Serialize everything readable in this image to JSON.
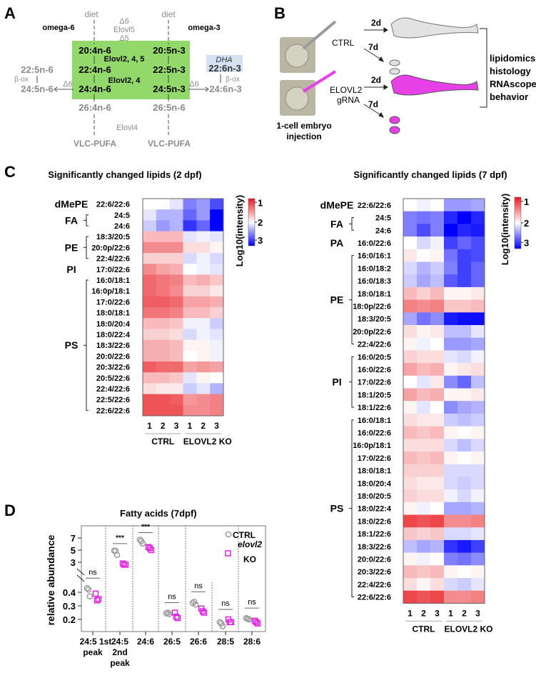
{
  "panels": {
    "a": "A",
    "b": "B",
    "c": "C",
    "d": "D"
  },
  "panel_a": {
    "diet": "diet",
    "omega6": "omega-6",
    "omega3": "omega-3",
    "enz_top": [
      "Δ6",
      "Elovl5",
      "Δ5"
    ],
    "n6": [
      "20:4n-6",
      "22:4n-6",
      "24:4n-6",
      "26:4n-6"
    ],
    "n3": [
      "20:5n-3",
      "22:5n-3",
      "24:5n-3",
      "26:5n-6"
    ],
    "elovl245": "Elovl2, 4, 5",
    "elovl24": "Elovl2, 4",
    "elovl4": "Elovl4",
    "vlc": "VLC-PUFA",
    "left_upper": "22:5n-6",
    "left_lower": "24:5n-6",
    "beta_ox": "β-ox",
    "delta6": "Δ6",
    "dha": "DHA",
    "right_upper": "22:6n-3",
    "right_lower": "24:6n-3",
    "colors": {
      "green_box": "#92d86a",
      "dha_box": "#d6e2f3",
      "grey_text": "#8c8c8c"
    }
  },
  "panel_b": {
    "ctrl": "CTRL",
    "elovl2": "ELOVL2",
    "grna": "gRNA",
    "d2": "2d",
    "d7": "7d",
    "injection": [
      "1-cell embryo",
      "injection"
    ],
    "readouts": [
      "lipidomics",
      "histology",
      "RNAscope",
      "behavior"
    ],
    "colors": {
      "ctrl_fish": "#e2e2e2",
      "ko_fish": "#e640e6"
    }
  },
  "chart_data": [
    {
      "type": "heatmap",
      "title": "Significantly changed lipids (2 dpf)",
      "colorbar_label": "Log10(intensity)",
      "colorbar_ticks": [
        "1",
        "2",
        "3"
      ],
      "color_range": [
        1,
        3
      ],
      "colors": {
        "low": "#e8191f",
        "mid": "#ffffff",
        "high": "#0000ff"
      },
      "column_labels": [
        "1",
        "2",
        "3",
        "1",
        "2",
        "3"
      ],
      "groups": [
        "CTRL",
        "ELOVL2 KO"
      ],
      "classes": [
        {
          "name": "dMePE",
          "rows": [
            0,
            0
          ]
        },
        {
          "name": "FA",
          "rows": [
            1,
            2
          ]
        },
        {
          "name": "PE",
          "rows": [
            3,
            5
          ]
        },
        {
          "name": "PI",
          "rows": [
            6,
            6
          ]
        },
        {
          "name": "PS",
          "rows": [
            7,
            19
          ]
        }
      ],
      "rows": [
        "22:6/22:6",
        "24:5",
        "24:6",
        "18:3/20:5",
        "20:0p/22:6",
        "22:4/22:6",
        "17:0/22:6",
        "16:0/18:1",
        "16:0p/18:1",
        "17:0/22:6",
        "18:0/18:1",
        "18:0/20:4",
        "18:0/22:4",
        "18:3/22:6",
        "20:0/22:6",
        "20:3/22:6",
        "20:5/22:6",
        "22:4/22:6",
        "22:5/22:6",
        "22:6/22:6"
      ],
      "values": [
        [
          2.0,
          2.0,
          2.1,
          2.5,
          2.4,
          2.7
        ],
        [
          2.1,
          2.3,
          2.3,
          2.6,
          2.4,
          3.0
        ],
        [
          2.2,
          2.4,
          2.3,
          2.8,
          2.6,
          3.0
        ],
        [
          1.7,
          1.7,
          1.7,
          2.1,
          2.05,
          2.1
        ],
        [
          1.5,
          1.5,
          1.5,
          1.85,
          1.85,
          1.95
        ],
        [
          1.8,
          1.8,
          1.8,
          2.15,
          2.05,
          2.15
        ],
        [
          1.5,
          1.6,
          1.65,
          2.0,
          2.05,
          2.1
        ],
        [
          1.35,
          1.4,
          1.45,
          1.7,
          1.65,
          1.75
        ],
        [
          1.35,
          1.4,
          1.5,
          1.8,
          1.8,
          1.9
        ],
        [
          1.3,
          1.3,
          1.35,
          1.6,
          1.6,
          1.65
        ],
        [
          1.4,
          1.4,
          1.45,
          1.7,
          1.7,
          1.8
        ],
        [
          1.7,
          1.7,
          1.75,
          2.05,
          2.05,
          2.2
        ],
        [
          1.8,
          1.8,
          1.85,
          2.15,
          2.05,
          2.1
        ],
        [
          1.65,
          1.65,
          1.7,
          1.95,
          1.95,
          2.05
        ],
        [
          1.65,
          1.65,
          1.7,
          2.0,
          1.95,
          2.05
        ],
        [
          1.3,
          1.35,
          1.35,
          1.6,
          1.55,
          1.6
        ],
        [
          1.7,
          1.7,
          1.75,
          2.1,
          1.95,
          2.0
        ],
        [
          1.85,
          1.9,
          1.9,
          2.2,
          2.1,
          2.3
        ],
        [
          1.25,
          1.25,
          1.3,
          1.55,
          1.5,
          1.45
        ],
        [
          1.25,
          1.25,
          1.25,
          1.5,
          1.5,
          1.45
        ]
      ]
    },
    {
      "type": "heatmap",
      "title": "Significantly changed lipids (7 dpf)",
      "colorbar_label": "Log10(intensity)",
      "colorbar_ticks": [
        "1",
        "2",
        "3"
      ],
      "color_range": [
        1,
        3
      ],
      "colors": {
        "low": "#e8191f",
        "mid": "#ffffff",
        "high": "#0000ff"
      },
      "column_labels": [
        "1",
        "2",
        "3",
        "1",
        "2",
        "3"
      ],
      "groups": [
        "CTRL",
        "ELOVL2 KO"
      ],
      "classes": [
        {
          "name": "dMePE",
          "rows": [
            0,
            0
          ]
        },
        {
          "name": "FA",
          "rows": [
            1,
            2
          ]
        },
        {
          "name": "PA",
          "rows": [
            3,
            3
          ]
        },
        {
          "name": "PE",
          "rows": [
            4,
            11
          ]
        },
        {
          "name": "PI",
          "rows": [
            12,
            16
          ]
        },
        {
          "name": "PS",
          "rows": [
            17,
            31
          ]
        }
      ],
      "rows": [
        "22:6/22:6",
        "24:5",
        "24:6",
        "16:0/22:6",
        "16:0/16:1",
        "16:0/18:2",
        "16:0/18:3",
        "18:0/18:1",
        "18:0p/22:6",
        "18:3/20:5",
        "20:0p/22:6",
        "22:4/22:6",
        "16:0/20:5",
        "16:0/22:6",
        "17:0/22:6",
        "18:1/20:5",
        "18:1/22:6",
        "16:0/18:1",
        "16:0/22:6",
        "16:0p/18:1",
        "17:0/22:6",
        "18:0/18:1",
        "18:0/20:4",
        "18:0/20:5",
        "18:0/22:4",
        "18:0/22:6",
        "18:1/22:6",
        "18:3/22:6",
        "20:0/22:6",
        "20:3/22:6",
        "22:4/22:6",
        "22:6/22:6"
      ],
      "values": [
        [
          2.0,
          2.05,
          2.0,
          2.4,
          2.4,
          2.35
        ],
        [
          2.5,
          2.55,
          2.5,
          2.85,
          3.0,
          2.85
        ],
        [
          2.5,
          2.7,
          2.5,
          3.0,
          2.85,
          2.9
        ],
        [
          2.0,
          2.15,
          2.05,
          2.75,
          2.6,
          2.7
        ],
        [
          1.9,
          2.0,
          1.95,
          2.55,
          2.75,
          2.7
        ],
        [
          2.15,
          2.3,
          2.2,
          2.5,
          2.75,
          2.6
        ],
        [
          2.2,
          2.35,
          2.25,
          2.65,
          2.75,
          2.6
        ],
        [
          1.7,
          1.8,
          1.7,
          1.95,
          1.95,
          1.9
        ],
        [
          1.45,
          1.5,
          1.45,
          1.75,
          1.75,
          1.7
        ],
        [
          2.35,
          2.55,
          2.45,
          2.9,
          2.95,
          2.95
        ],
        [
          1.85,
          1.95,
          1.9,
          2.25,
          2.25,
          2.1
        ],
        [
          1.95,
          2.05,
          2.0,
          2.4,
          2.4,
          2.35
        ],
        [
          1.8,
          1.85,
          1.85,
          2.1,
          2.15,
          2.05
        ],
        [
          1.6,
          1.7,
          1.65,
          1.95,
          1.9,
          1.85
        ],
        [
          2.0,
          2.1,
          1.9,
          2.45,
          2.6,
          2.25
        ],
        [
          1.6,
          1.7,
          1.65,
          1.95,
          1.95,
          1.9
        ],
        [
          1.95,
          2.1,
          2.0,
          2.45,
          2.35,
          2.3
        ],
        [
          1.85,
          1.9,
          1.9,
          2.2,
          2.25,
          2.2
        ],
        [
          1.7,
          1.75,
          1.7,
          1.95,
          2.0,
          1.95
        ],
        [
          1.85,
          1.85,
          1.85,
          2.15,
          2.25,
          2.15
        ],
        [
          1.7,
          1.75,
          1.7,
          1.95,
          2.0,
          1.95
        ],
        [
          1.8,
          1.8,
          1.8,
          2.15,
          2.15,
          2.15
        ],
        [
          1.85,
          1.9,
          1.9,
          2.15,
          2.2,
          2.15
        ],
        [
          1.8,
          1.85,
          1.85,
          2.05,
          2.15,
          2.05
        ],
        [
          1.95,
          2.05,
          2.0,
          2.35,
          2.35,
          2.3
        ],
        [
          1.2,
          1.25,
          1.2,
          1.5,
          1.5,
          1.45
        ],
        [
          1.75,
          1.8,
          1.75,
          2.15,
          2.15,
          2.1
        ],
        [
          2.25,
          2.35,
          2.3,
          2.8,
          2.9,
          2.75
        ],
        [
          1.95,
          2.05,
          2.0,
          2.5,
          2.55,
          2.45
        ],
        [
          1.7,
          1.75,
          1.7,
          1.95,
          2.0,
          1.95
        ],
        [
          1.85,
          1.95,
          1.85,
          2.15,
          2.2,
          2.1
        ],
        [
          1.2,
          1.25,
          1.2,
          1.5,
          1.5,
          1.45
        ]
      ]
    },
    {
      "type": "scatter",
      "title": "Fatty acids (7dpf)",
      "ylabel": "relative abundance",
      "yaxis": "broken",
      "y_ticks_lower": [
        "0.2",
        "0.3",
        "0.4"
      ],
      "y_ticks_upper": [
        "3",
        "5",
        "7"
      ],
      "ylim_lower": [
        0.13,
        0.45
      ],
      "ylim_upper": [
        2,
        8
      ],
      "categories": [
        [
          "24:5 1st",
          "peak"
        ],
        [
          "24:5",
          "2nd",
          "peak"
        ],
        [
          "24:6"
        ],
        [
          "26:5"
        ],
        [
          "26:6"
        ],
        [
          "28:5"
        ],
        [
          "28:6"
        ]
      ],
      "legend": "top-right",
      "series": [
        {
          "name": "CTRL",
          "marker": "circle",
          "color": "#999999",
          "values": [
            [
              0.43,
              0.42,
              0.37
            ],
            [
              4.9,
              4.9,
              4.2
            ],
            [
              6.7,
              6.5,
              6.1
            ],
            [
              0.245,
              0.25,
              0.24
            ],
            [
              0.32,
              0.33,
              0.31
            ],
            [
              0.18,
              0.17,
              0.15
            ],
            [
              0.21,
              0.205,
              0.2
            ]
          ]
        },
        {
          "name": "elovl2 KO",
          "marker": "square",
          "color": "#e020e0",
          "values": [
            [
              0.39,
              0.34,
              0.35
            ],
            [
              2.8,
              2.6,
              2.6
            ],
            [
              5.5,
              5.3,
              5.0
            ],
            [
              0.25,
              0.22,
              0.21
            ],
            [
              0.28,
              0.26,
              0.25
            ],
            [
              0.2,
              0.18,
              0.18
            ],
            [
              0.19,
              0.18,
              0.17
            ]
          ]
        }
      ],
      "significance": [
        "ns",
        "***",
        "***",
        "ns",
        "ns",
        "ns",
        "ns"
      ]
    }
  ]
}
